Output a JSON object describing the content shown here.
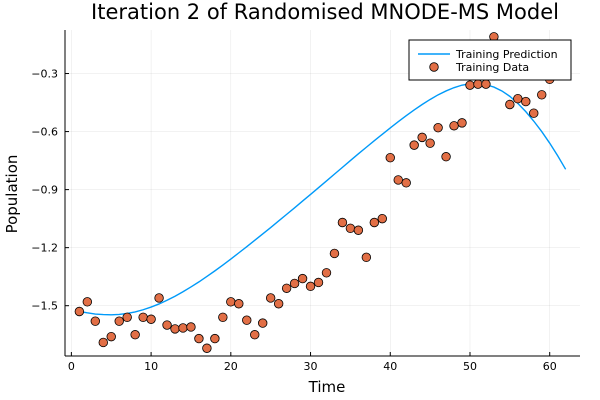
{
  "chart_data": {
    "type": "scatter",
    "title": "Iteration 2 of Randomised MNODE-MS Model",
    "xlabel": "Time",
    "ylabel": "Population",
    "xlim": [
      -0.8,
      63.8
    ],
    "ylim": [
      -1.76,
      -0.075
    ],
    "xticks": [
      0,
      10,
      20,
      30,
      40,
      50,
      60
    ],
    "yticks": [
      -1.5,
      -1.2,
      -0.9,
      -0.6,
      -0.3
    ],
    "ytick_labels": [
      "−1.5",
      "−1.2",
      "−0.9",
      "−0.6",
      "−0.3"
    ],
    "grid": true,
    "legend_position": "top-right",
    "colors": {
      "line": "#009af9",
      "marker": "#e26f46",
      "marker_edge": "#000000"
    },
    "series": [
      {
        "name": "Training Prediction",
        "kind": "line",
        "x": [
          1,
          2,
          3,
          4,
          5,
          6,
          7,
          8,
          9,
          10,
          11,
          12,
          13,
          14,
          15,
          16,
          17,
          18,
          19,
          20,
          21,
          22,
          23,
          24,
          25,
          26,
          27,
          28,
          29,
          30,
          31,
          32,
          33,
          34,
          35,
          36,
          37,
          38,
          39,
          40,
          41,
          42,
          43,
          44,
          45,
          46,
          47,
          48,
          49,
          50,
          51,
          52,
          53,
          54,
          55,
          56,
          57,
          58,
          59,
          60,
          61,
          62
        ],
        "y": [
          -1.53,
          -1.537,
          -1.543,
          -1.546,
          -1.547,
          -1.545,
          -1.54,
          -1.532,
          -1.521,
          -1.507,
          -1.491,
          -1.472,
          -1.451,
          -1.428,
          -1.403,
          -1.377,
          -1.349,
          -1.32,
          -1.29,
          -1.259,
          -1.227,
          -1.195,
          -1.162,
          -1.129,
          -1.096,
          -1.062,
          -1.028,
          -0.994,
          -0.959,
          -0.925,
          -0.89,
          -0.855,
          -0.82,
          -0.785,
          -0.75,
          -0.715,
          -0.681,
          -0.647,
          -0.614,
          -0.581,
          -0.549,
          -0.518,
          -0.488,
          -0.46,
          -0.434,
          -0.41,
          -0.39,
          -0.373,
          -0.36,
          -0.353,
          -0.352,
          -0.358,
          -0.37,
          -0.39,
          -0.418,
          -0.454,
          -0.497,
          -0.546,
          -0.6,
          -0.66,
          -0.725,
          -0.795
        ]
      },
      {
        "name": "Training Data",
        "kind": "scatter",
        "x": [
          1,
          2,
          3,
          4,
          5,
          6,
          7,
          8,
          9,
          10,
          11,
          12,
          13,
          14,
          15,
          16,
          17,
          18,
          19,
          20,
          21,
          22,
          23,
          24,
          25,
          26,
          27,
          28,
          29,
          30,
          31,
          32,
          33,
          34,
          35,
          36,
          37,
          38,
          39,
          40,
          41,
          42,
          43,
          44,
          45,
          46,
          47,
          48,
          49,
          50,
          51,
          52,
          53,
          54,
          55,
          56,
          57,
          58,
          59,
          60,
          61,
          62
        ],
        "y": [
          -1.53,
          -1.48,
          -1.58,
          -1.69,
          -1.66,
          -1.58,
          -1.56,
          -1.65,
          -1.56,
          -1.57,
          -1.46,
          -1.6,
          -1.62,
          -1.615,
          -1.61,
          -1.67,
          -1.72,
          -1.67,
          -1.56,
          -1.48,
          -1.49,
          -1.575,
          -1.65,
          -1.59,
          -1.46,
          -1.49,
          -1.41,
          -1.385,
          -1.36,
          -1.4,
          -1.38,
          -1.33,
          -1.23,
          -1.07,
          -1.1,
          -1.11,
          -1.25,
          -1.07,
          -1.05,
          -0.735,
          -0.85,
          -0.865,
          -0.67,
          -0.63,
          -0.66,
          -0.58,
          -0.73,
          -0.57,
          -0.555,
          -0.36,
          -0.355,
          -0.355,
          -0.11,
          -0.3,
          -0.46,
          -0.43,
          -0.445,
          -0.505,
          -0.41,
          -0.33,
          -0.23,
          -0.225
        ]
      }
    ]
  }
}
